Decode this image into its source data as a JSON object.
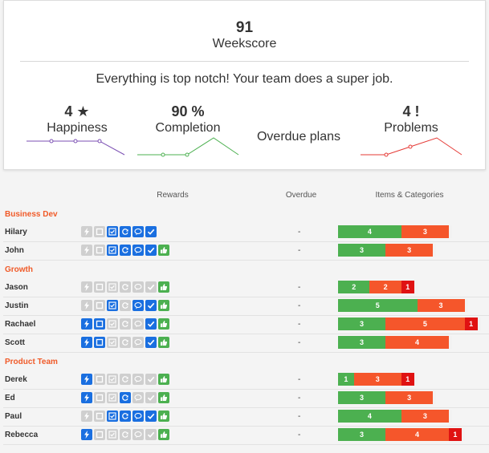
{
  "weekscore": {
    "value": "91",
    "label": "Weekscore",
    "message": "Everything is top notch! Your team does a super job."
  },
  "metrics": {
    "happiness": {
      "value": "4 ★",
      "label": "Happiness",
      "color": "#7b4fb3"
    },
    "completion": {
      "value": "90 %",
      "label": "Completion",
      "color": "#4cb050"
    },
    "overdue": {
      "label": "Overdue plans"
    },
    "problems": {
      "value": "4 !",
      "label": "Problems",
      "color": "#e53935"
    }
  },
  "columns": {
    "rewards": "Rewards",
    "overdue": "Overdue",
    "items": "Items & Categories"
  },
  "colors": {
    "accent": "#f05a28",
    "reward_on": "#1a6fe0",
    "reward_off": "#cfcfcf",
    "done_green": "#4cb050",
    "bar_green": "#4cb050",
    "bar_orange": "#f5562b",
    "bar_red": "#e01212"
  },
  "reward_icons": [
    "bolt-icon",
    "square-icon",
    "checkbox-icon",
    "refresh-icon",
    "chat-icon",
    "check-icon",
    "thumbs-up-icon"
  ],
  "groups": [
    {
      "name": "Business Dev",
      "members": [
        {
          "name": "Hilary",
          "rewards": [
            0,
            0,
            1,
            1,
            1,
            1,
            null
          ],
          "overdue": "-",
          "items": [
            "4",
            "3",
            ""
          ]
        },
        {
          "name": "John",
          "rewards": [
            0,
            0,
            1,
            1,
            1,
            1,
            1
          ],
          "overdue": "-",
          "items": [
            "3",
            "3",
            ""
          ]
        }
      ]
    },
    {
      "name": "Growth",
      "members": [
        {
          "name": "Jason",
          "rewards": [
            0,
            0,
            0,
            0,
            0,
            0,
            1
          ],
          "overdue": "-",
          "items": [
            "2",
            "2",
            "1"
          ]
        },
        {
          "name": "Justin",
          "rewards": [
            0,
            0,
            1,
            0,
            1,
            1,
            1
          ],
          "overdue": "-",
          "items": [
            "5",
            "3",
            ""
          ]
        },
        {
          "name": "Rachael",
          "rewards": [
            1,
            1,
            0,
            0,
            0,
            1,
            1
          ],
          "overdue": "-",
          "items": [
            "3",
            "5",
            "1"
          ]
        },
        {
          "name": "Scott",
          "rewards": [
            1,
            1,
            0,
            0,
            0,
            1,
            1
          ],
          "overdue": "-",
          "items": [
            "3",
            "4",
            ""
          ]
        }
      ]
    },
    {
      "name": "Product Team",
      "members": [
        {
          "name": "Derek",
          "rewards": [
            1,
            0,
            0,
            0,
            0,
            0,
            1
          ],
          "overdue": "-",
          "items": [
            "1",
            "3",
            "1"
          ]
        },
        {
          "name": "Ed",
          "rewards": [
            1,
            0,
            0,
            1,
            0,
            0,
            1
          ],
          "overdue": "-",
          "items": [
            "3",
            "3",
            ""
          ]
        },
        {
          "name": "Paul",
          "rewards": [
            0,
            0,
            1,
            1,
            1,
            1,
            1
          ],
          "overdue": "-",
          "items": [
            "4",
            "3",
            ""
          ]
        },
        {
          "name": "Rebecca",
          "rewards": [
            1,
            0,
            0,
            0,
            0,
            0,
            1
          ],
          "overdue": "-",
          "items": [
            "3",
            "4",
            "1"
          ]
        }
      ]
    }
  ]
}
